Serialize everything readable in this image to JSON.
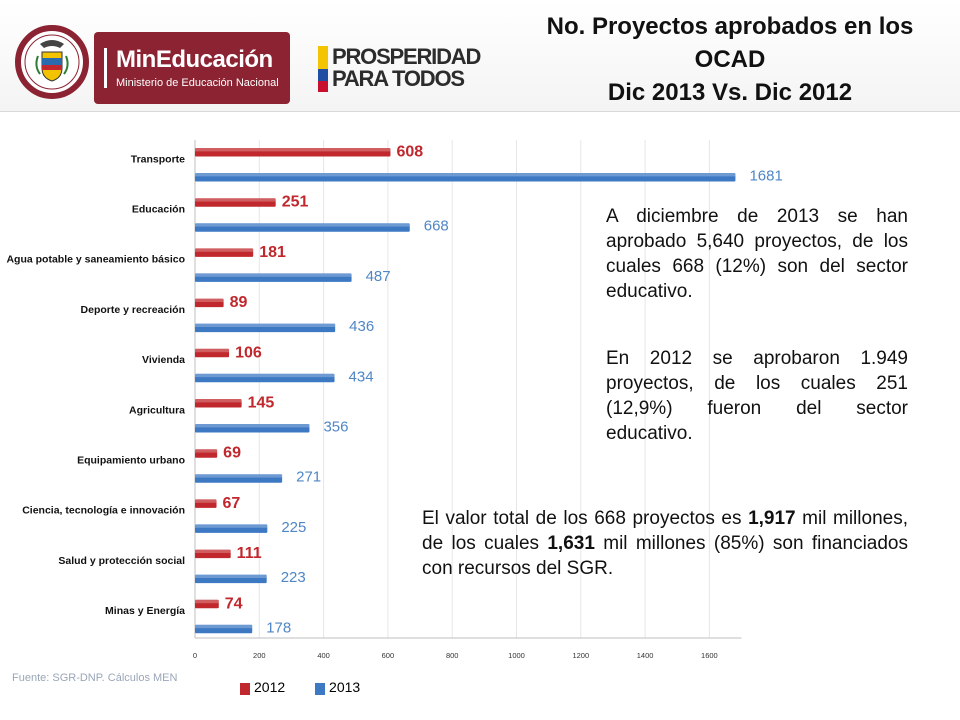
{
  "header": {
    "ministry_name": "MinEducación",
    "ministry_sub": "Ministerio de Educación Nacional",
    "seal_text_top": "REPÚBLICA",
    "seal_text_bottom": "DE COLOMBIA",
    "prosperity_line1": "PROSPERIDAD",
    "prosperity_line2": "PARA TODOS",
    "title_line1": "No. Proyectos aprobados en los",
    "title_line2": "OCAD",
    "title_line3": "Dic 2013 Vs. Dic 2012"
  },
  "colors": {
    "red_2012": "#c0282d",
    "blue_2013": "#3d78c3",
    "ministry": "#8b2332"
  },
  "chart_data": {
    "type": "bar",
    "orientation": "horizontal",
    "categories": [
      "Transporte",
      "Educación",
      "Agua potable y saneamiento básico",
      "Deporte y recreación",
      "Vivienda",
      "Agricultura",
      "Equipamiento urbano",
      "Ciencia, tecnología e innovación",
      "Salud y protección social",
      "Minas y Energía"
    ],
    "series": [
      {
        "name": "2012",
        "values": [
          608,
          251,
          181,
          89,
          106,
          145,
          69,
          67,
          111,
          74
        ]
      },
      {
        "name": "2013",
        "values": [
          1681,
          668,
          487,
          436,
          434,
          356,
          271,
          225,
          223,
          178
        ]
      }
    ],
    "xlim": [
      0,
      1700
    ],
    "xticks": [
      "0",
      "200",
      "400",
      "600",
      "800",
      "1000",
      "1200",
      "1400",
      "1600"
    ],
    "legend_position": "bottom",
    "grid": true
  },
  "paragraphs": {
    "p1": "A diciembre de 2013 se han aprobado 5,640 proyectos, de los cuales 668 (12%) son del sector educativo.",
    "p2": "En 2012 se aprobaron 1.949 proyectos, de los cuales 251 (12,9%) fueron del sector educativo.",
    "p3_a": "El valor total de los  668 proyectos es ",
    "p3_b": "1,917",
    "p3_c": " mil millones, de los cuales ",
    "p3_d": "1,631",
    "p3_e": " mil millones (85%) son financiados con recursos del SGR."
  },
  "source": "Fuente: SGR-DNP. Cálculos MEN"
}
